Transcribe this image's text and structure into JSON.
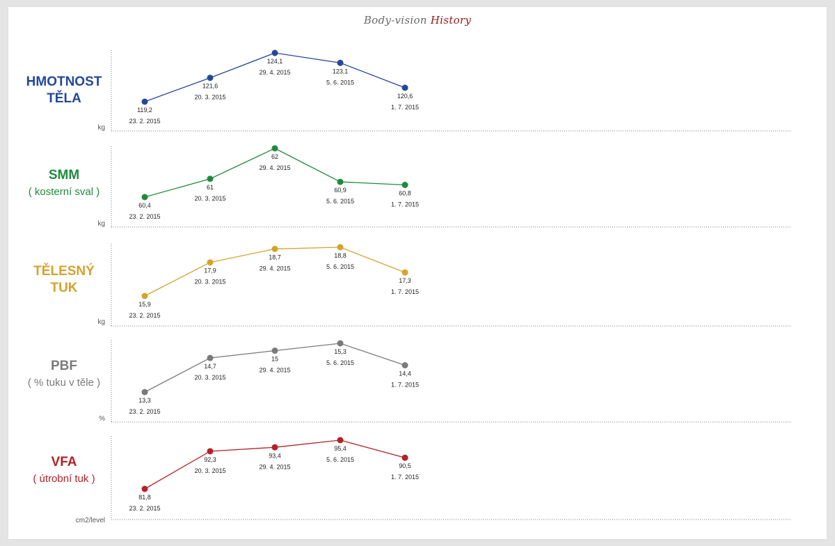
{
  "title": {
    "part1": "Body-vision",
    "part2": "History"
  },
  "dates": [
    "23. 2. 2015",
    "20. 3. 2015",
    "29. 4. 2015",
    "5. 6. 2015",
    "1. 7. 2015"
  ],
  "chart_data": [
    {
      "type": "line",
      "title": "HMOTNOST TĚLA",
      "subtitle": "",
      "ylabel": "kg",
      "color": "#25479a",
      "x": [
        "23. 2. 2015",
        "20. 3. 2015",
        "29. 4. 2015",
        "5. 6. 2015",
        "1. 7. 2015"
      ],
      "values": [
        119.2,
        121.6,
        124.1,
        123.1,
        120.6
      ],
      "value_labels": [
        "119,2",
        "121,6",
        "124,1",
        "123,1",
        "120,6"
      ],
      "ylim": [
        117.5,
        124.6
      ],
      "grid": false
    },
    {
      "type": "line",
      "title": "SMM",
      "subtitle": "( kosterní sval )",
      "ylabel": "kg",
      "color": "#1f8a3f",
      "x": [
        "23. 2. 2015",
        "20. 3. 2015",
        "29. 4. 2015",
        "5. 6. 2015",
        "1. 7. 2015"
      ],
      "values": [
        60.4,
        61,
        62,
        60.9,
        60.8
      ],
      "value_labels": [
        "60,4",
        "61",
        "62",
        "60,9",
        "60,8"
      ],
      "ylim": [
        59.7,
        62.2
      ],
      "grid": false
    },
    {
      "type": "line",
      "title": "TĚLESNÝ",
      "subtitle": "TUK",
      "ylabel": "kg",
      "color": "#d4a32c",
      "x": [
        "23. 2. 2015",
        "20. 3. 2015",
        "29. 4. 2015",
        "5. 6. 2015",
        "1. 7. 2015"
      ],
      "values": [
        15.9,
        17.9,
        18.7,
        18.8,
        17.3
      ],
      "value_labels": [
        "15,9",
        "17,9",
        "18,7",
        "18,8",
        "17,3"
      ],
      "ylim": [
        14.8,
        19.1
      ],
      "grid": false
    },
    {
      "type": "line",
      "title": "PBF",
      "subtitle": "( % tuku v těle )",
      "ylabel": "%",
      "color": "#7a7a7a",
      "x": [
        "23. 2. 2015",
        "20. 3. 2015",
        "29. 4. 2015",
        "5. 6. 2015",
        "1. 7. 2015"
      ],
      "values": [
        13.3,
        14.7,
        15,
        15.3,
        14.4
      ],
      "value_labels": [
        "13,3",
        "14,7",
        "15",
        "15,3",
        "14,4"
      ],
      "ylim": [
        12.5,
        15.6
      ],
      "grid": false
    },
    {
      "type": "line",
      "title": "VFA",
      "subtitle": "( útrobní tuk )",
      "ylabel": "cm2/level",
      "color": "#b22226",
      "x": [
        "23. 2. 2015",
        "20. 3. 2015",
        "29. 4. 2015",
        "5. 6. 2015",
        "1. 7. 2015"
      ],
      "values": [
        81.8,
        92.3,
        93.4,
        95.4,
        90.5
      ],
      "value_labels": [
        "81,8",
        "92,3",
        "93,4",
        "95,4",
        "90,5"
      ],
      "ylim": [
        77.5,
        96.5
      ],
      "grid": false
    }
  ]
}
